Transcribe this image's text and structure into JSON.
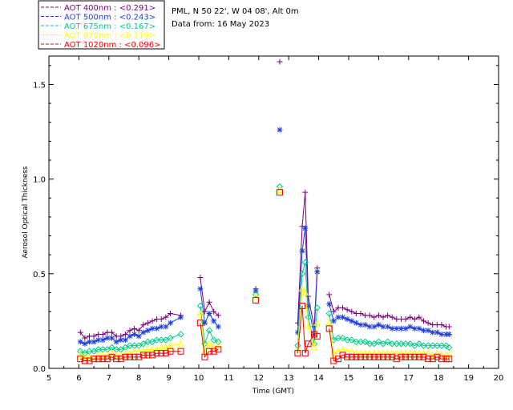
{
  "chart_data": {
    "type": "line",
    "xlabel": "Time (GMT)",
    "ylabel": "Aerosol Optical Thickness",
    "xlim": [
      5,
      20
    ],
    "ylim": [
      0.0,
      1.65
    ],
    "xticks": [
      5,
      6,
      7,
      8,
      9,
      10,
      11,
      12,
      13,
      14,
      15,
      16,
      17,
      18,
      19,
      20
    ],
    "xtick_labels": [
      "5",
      "6",
      "7",
      "8",
      "9",
      "10",
      "11",
      "12",
      "13",
      "14",
      "15",
      "16",
      "17",
      "18",
      "19",
      "20"
    ],
    "yticks": [
      0.0,
      0.5,
      1.0,
      1.5
    ],
    "ytick_labels": [
      "0.0",
      "0.5",
      "1.0",
      "1.5"
    ],
    "info_lines": [
      "PML, N 50 22', W 04 08', Alt 0m",
      "Data from: 16 May 2023"
    ],
    "series": [
      {
        "name": "400nm",
        "label": "AOT  400nm : ",
        "mean": "<0.291>",
        "color": "#7a007a",
        "marker": "plus",
        "x": [
          6.05,
          6.2,
          6.35,
          6.5,
          6.65,
          6.8,
          6.95,
          7.1,
          7.25,
          7.4,
          7.55,
          7.7,
          7.85,
          8.0,
          8.15,
          8.3,
          8.45,
          8.6,
          8.75,
          8.9,
          9.05,
          9.4,
          10.05,
          10.2,
          10.35,
          10.5,
          10.65,
          11.9,
          12.7,
          13.3,
          13.45,
          13.55,
          13.65,
          13.85,
          13.95,
          14.35,
          14.5,
          14.65,
          14.8,
          14.95,
          15.1,
          15.25,
          15.4,
          15.55,
          15.7,
          15.85,
          16.0,
          16.15,
          16.3,
          16.45,
          16.6,
          16.75,
          16.9,
          17.05,
          17.2,
          17.35,
          17.5,
          17.65,
          17.8,
          17.95,
          18.1,
          18.25,
          18.35
        ],
        "values": [
          0.19,
          0.16,
          0.17,
          0.17,
          0.18,
          0.18,
          0.19,
          0.19,
          0.17,
          0.17,
          0.18,
          0.2,
          0.21,
          0.2,
          0.23,
          0.24,
          0.25,
          0.26,
          0.26,
          0.27,
          0.29,
          0.28,
          0.48,
          0.3,
          0.35,
          0.3,
          0.28,
          0.42,
          1.62,
          0.24,
          0.75,
          0.93,
          0.38,
          0.22,
          0.53,
          0.39,
          0.3,
          0.32,
          0.32,
          0.31,
          0.3,
          0.29,
          0.29,
          0.28,
          0.28,
          0.27,
          0.28,
          0.27,
          0.28,
          0.27,
          0.26,
          0.26,
          0.26,
          0.27,
          0.26,
          0.27,
          0.25,
          0.24,
          0.23,
          0.23,
          0.23,
          0.22,
          0.22
        ]
      },
      {
        "name": "500nm",
        "label": "AOT  500nm : ",
        "mean": "<0.243>",
        "color": "#1f3fe0",
        "marker": "asterisk",
        "x": [
          6.05,
          6.2,
          6.35,
          6.5,
          6.65,
          6.8,
          6.95,
          7.1,
          7.25,
          7.4,
          7.55,
          7.7,
          7.85,
          8.0,
          8.15,
          8.3,
          8.45,
          8.6,
          8.75,
          8.9,
          9.05,
          9.4,
          10.05,
          10.2,
          10.35,
          10.5,
          10.65,
          11.9,
          12.7,
          13.3,
          13.45,
          13.55,
          13.65,
          13.85,
          13.95,
          14.35,
          14.5,
          14.65,
          14.8,
          14.95,
          15.1,
          15.25,
          15.4,
          15.55,
          15.7,
          15.85,
          16.0,
          16.15,
          16.3,
          16.45,
          16.6,
          16.75,
          16.9,
          17.05,
          17.2,
          17.35,
          17.5,
          17.65,
          17.8,
          17.95,
          18.1,
          18.25,
          18.35
        ],
        "values": [
          0.14,
          0.13,
          0.14,
          0.14,
          0.15,
          0.15,
          0.16,
          0.16,
          0.14,
          0.15,
          0.15,
          0.17,
          0.18,
          0.17,
          0.19,
          0.2,
          0.21,
          0.21,
          0.22,
          0.22,
          0.24,
          0.27,
          0.42,
          0.24,
          0.29,
          0.25,
          0.22,
          0.41,
          1.26,
          0.19,
          0.62,
          0.74,
          0.33,
          0.18,
          0.51,
          0.34,
          0.25,
          0.27,
          0.27,
          0.26,
          0.25,
          0.24,
          0.23,
          0.23,
          0.22,
          0.22,
          0.23,
          0.22,
          0.22,
          0.21,
          0.21,
          0.21,
          0.21,
          0.22,
          0.21,
          0.21,
          0.2,
          0.2,
          0.19,
          0.19,
          0.18,
          0.18,
          0.18
        ]
      },
      {
        "name": "675nm",
        "label": "AOT  675nm : ",
        "mean": "<0.167>",
        "color": "#00cc88",
        "marker": "diamond",
        "x": [
          6.05,
          6.2,
          6.35,
          6.5,
          6.65,
          6.8,
          6.95,
          7.1,
          7.25,
          7.4,
          7.55,
          7.7,
          7.85,
          8.0,
          8.15,
          8.3,
          8.45,
          8.6,
          8.75,
          8.9,
          9.05,
          9.4,
          10.05,
          10.2,
          10.35,
          10.5,
          10.65,
          11.9,
          12.7,
          13.3,
          13.45,
          13.55,
          13.65,
          13.85,
          13.95,
          14.35,
          14.5,
          14.65,
          14.8,
          14.95,
          15.1,
          15.25,
          15.4,
          15.55,
          15.7,
          15.85,
          16.0,
          16.15,
          16.3,
          16.45,
          16.6,
          16.75,
          16.9,
          17.05,
          17.2,
          17.35,
          17.5,
          17.65,
          17.8,
          17.95,
          18.1,
          18.25,
          18.35
        ],
        "values": [
          0.09,
          0.08,
          0.09,
          0.09,
          0.1,
          0.1,
          0.1,
          0.11,
          0.1,
          0.1,
          0.11,
          0.12,
          0.12,
          0.12,
          0.13,
          0.14,
          0.14,
          0.15,
          0.15,
          0.15,
          0.16,
          0.18,
          0.33,
          0.13,
          0.2,
          0.15,
          0.14,
          0.39,
          0.96,
          0.12,
          0.5,
          0.56,
          0.27,
          0.13,
          0.32,
          0.29,
          0.15,
          0.16,
          0.16,
          0.15,
          0.15,
          0.14,
          0.14,
          0.14,
          0.13,
          0.13,
          0.14,
          0.13,
          0.14,
          0.13,
          0.13,
          0.13,
          0.13,
          0.13,
          0.12,
          0.13,
          0.12,
          0.12,
          0.12,
          0.12,
          0.12,
          0.12,
          0.11
        ]
      },
      {
        "name": "870nm",
        "label": "AOT  870nm : ",
        "mean": "<0.119>",
        "color": "#ffff00",
        "marker": "triangle",
        "x": [
          6.05,
          6.2,
          6.35,
          6.5,
          6.65,
          6.8,
          6.95,
          7.1,
          7.25,
          7.4,
          7.55,
          7.7,
          7.85,
          8.0,
          8.15,
          8.3,
          8.45,
          8.6,
          8.75,
          8.9,
          9.05,
          9.4,
          10.05,
          10.2,
          10.35,
          10.5,
          10.65,
          11.9,
          12.7,
          13.3,
          13.45,
          13.55,
          13.65,
          13.85,
          13.95,
          14.35,
          14.5,
          14.65,
          14.8,
          14.95,
          15.1,
          15.25,
          15.4,
          15.55,
          15.7,
          15.85,
          16.0,
          16.15,
          16.3,
          16.45,
          16.6,
          16.75,
          16.9,
          17.05,
          17.2,
          17.35,
          17.5,
          17.65,
          17.8,
          17.95,
          18.1,
          18.25,
          18.35
        ],
        "values": [
          0.07,
          0.06,
          0.06,
          0.06,
          0.07,
          0.07,
          0.07,
          0.08,
          0.07,
          0.07,
          0.08,
          0.08,
          0.09,
          0.09,
          0.09,
          0.1,
          0.1,
          0.1,
          0.11,
          0.11,
          0.12,
          0.13,
          0.29,
          0.09,
          0.13,
          0.11,
          0.12,
          0.38,
          0.94,
          0.1,
          0.42,
          0.4,
          0.22,
          0.11,
          0.24,
          0.24,
          0.08,
          0.09,
          0.1,
          0.09,
          0.09,
          0.08,
          0.08,
          0.08,
          0.08,
          0.08,
          0.08,
          0.08,
          0.08,
          0.08,
          0.08,
          0.08,
          0.08,
          0.08,
          0.08,
          0.08,
          0.08,
          0.08,
          0.07,
          0.08,
          0.07,
          0.07,
          0.07
        ]
      },
      {
        "name": "1020nm",
        "label": "AOT 1020nm : ",
        "mean": "<0.096>",
        "color": "#ee0000",
        "marker": "square",
        "x": [
          6.05,
          6.2,
          6.35,
          6.5,
          6.65,
          6.8,
          6.95,
          7.1,
          7.25,
          7.4,
          7.55,
          7.7,
          7.85,
          8.0,
          8.15,
          8.3,
          8.45,
          8.6,
          8.75,
          8.9,
          9.05,
          9.4,
          10.05,
          10.2,
          10.35,
          10.5,
          10.65,
          11.9,
          12.7,
          13.3,
          13.45,
          13.55,
          13.65,
          13.85,
          13.95,
          14.35,
          14.5,
          14.65,
          14.8,
          14.95,
          15.1,
          15.25,
          15.4,
          15.55,
          15.7,
          15.85,
          16.0,
          16.15,
          16.3,
          16.45,
          16.6,
          16.75,
          16.9,
          17.05,
          17.2,
          17.35,
          17.5,
          17.65,
          17.8,
          17.95,
          18.1,
          18.25,
          18.35
        ],
        "values": [
          0.05,
          0.04,
          0.04,
          0.05,
          0.05,
          0.05,
          0.05,
          0.06,
          0.05,
          0.05,
          0.06,
          0.06,
          0.06,
          0.06,
          0.07,
          0.07,
          0.07,
          0.08,
          0.08,
          0.08,
          0.09,
          0.09,
          0.24,
          0.06,
          0.09,
          0.09,
          0.1,
          0.36,
          0.93,
          0.08,
          0.33,
          0.08,
          0.13,
          0.18,
          0.17,
          0.21,
          0.04,
          0.05,
          0.07,
          0.06,
          0.06,
          0.06,
          0.06,
          0.06,
          0.06,
          0.06,
          0.06,
          0.06,
          0.06,
          0.06,
          0.05,
          0.06,
          0.06,
          0.06,
          0.06,
          0.06,
          0.06,
          0.05,
          0.05,
          0.06,
          0.05,
          0.05,
          0.05
        ]
      }
    ]
  }
}
